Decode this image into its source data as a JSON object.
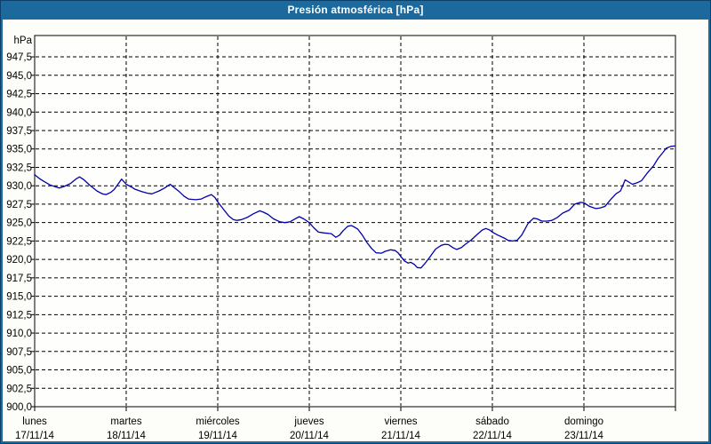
{
  "window": {
    "title": "Presión atmosférica [hPa]"
  },
  "colors": {
    "frame": "#1c6a9d",
    "title_text": "#ffffff",
    "panel_bg": "#fdfefa",
    "plot_bg": "#fefefc",
    "grid": "#000000",
    "axis": "#000000",
    "series_line": "#0000a8",
    "label_text": "#000000"
  },
  "chart_data": {
    "type": "line",
    "title": "Presión atmosférica [hPa]",
    "ylabel": "hPa",
    "xlabel": "",
    "grid": "dashed",
    "legend": "none",
    "ylim": [
      900,
      950.4
    ],
    "y_axis": {
      "min": 900,
      "max": 950.4,
      "tick_step": 2.5,
      "unit_label": "hPa",
      "tick_values": [
        947.5,
        945.0,
        942.5,
        940.0,
        937.5,
        935.0,
        932.5,
        930.0,
        927.5,
        925.0,
        922.5,
        920.0,
        917.5,
        915.0,
        912.5,
        910.0,
        907.5,
        905.0,
        902.5,
        900.0
      ],
      "tick_labels": [
        "947,5",
        "945,0",
        "942,5",
        "940,0",
        "937,5",
        "935,0",
        "932,5",
        "930,0",
        "927,5",
        "925,0",
        "922,5",
        "920,0",
        "917,5",
        "915,0",
        "912,5",
        "910,0",
        "907,5",
        "905,0",
        "902,5",
        "900,0"
      ]
    },
    "x_axis": {
      "span_days": 7,
      "days": [
        {
          "name": "lunes",
          "date": "17/11/14"
        },
        {
          "name": "martes",
          "date": "18/11/14"
        },
        {
          "name": "miércoles",
          "date": "19/11/14"
        },
        {
          "name": "jueves",
          "date": "20/11/14"
        },
        {
          "name": "viernes",
          "date": "21/11/14"
        },
        {
          "name": "sábado",
          "date": "22/11/14"
        },
        {
          "name": "domingo",
          "date": "23/11/14"
        }
      ]
    },
    "series": [
      {
        "name": "Presión atmosférica",
        "unit": "hPa",
        "points": [
          [
            0.0,
            931.5
          ],
          [
            0.05,
            931.0
          ],
          [
            0.1,
            930.6
          ],
          [
            0.17,
            930.1
          ],
          [
            0.24,
            929.8
          ],
          [
            0.27,
            929.7
          ],
          [
            0.32,
            929.9
          ],
          [
            0.39,
            930.3
          ],
          [
            0.45,
            930.9
          ],
          [
            0.49,
            931.2
          ],
          [
            0.54,
            930.8
          ],
          [
            0.6,
            930.1
          ],
          [
            0.68,
            929.3
          ],
          [
            0.74,
            928.9
          ],
          [
            0.78,
            928.8
          ],
          [
            0.83,
            929.1
          ],
          [
            0.87,
            929.5
          ],
          [
            0.91,
            930.2
          ],
          [
            0.95,
            930.9
          ],
          [
            1.0,
            930.2
          ],
          [
            1.06,
            929.8
          ],
          [
            1.1,
            929.5
          ],
          [
            1.17,
            929.2
          ],
          [
            1.23,
            929.0
          ],
          [
            1.28,
            928.9
          ],
          [
            1.36,
            929.3
          ],
          [
            1.42,
            929.7
          ],
          [
            1.48,
            930.2
          ],
          [
            1.53,
            929.7
          ],
          [
            1.58,
            929.2
          ],
          [
            1.63,
            928.6
          ],
          [
            1.68,
            928.2
          ],
          [
            1.76,
            928.1
          ],
          [
            1.82,
            928.2
          ],
          [
            1.87,
            928.5
          ],
          [
            1.93,
            928.8
          ],
          [
            1.97,
            928.4
          ],
          [
            2.0,
            927.8
          ],
          [
            2.07,
            926.7
          ],
          [
            2.12,
            925.9
          ],
          [
            2.17,
            925.4
          ],
          [
            2.21,
            925.3
          ],
          [
            2.26,
            925.4
          ],
          [
            2.32,
            925.7
          ],
          [
            2.39,
            926.2
          ],
          [
            2.46,
            926.6
          ],
          [
            2.5,
            926.4
          ],
          [
            2.55,
            926.1
          ],
          [
            2.61,
            925.5
          ],
          [
            2.68,
            925.1
          ],
          [
            2.73,
            925.0
          ],
          [
            2.79,
            925.1
          ],
          [
            2.83,
            925.4
          ],
          [
            2.89,
            925.8
          ],
          [
            2.94,
            925.5
          ],
          [
            3.0,
            925.0
          ],
          [
            3.05,
            924.3
          ],
          [
            3.1,
            923.7
          ],
          [
            3.16,
            923.6
          ],
          [
            3.24,
            923.5
          ],
          [
            3.29,
            923.0
          ],
          [
            3.33,
            923.3
          ],
          [
            3.37,
            923.9
          ],
          [
            3.42,
            924.5
          ],
          [
            3.46,
            924.6
          ],
          [
            3.49,
            924.4
          ],
          [
            3.53,
            924.1
          ],
          [
            3.58,
            923.3
          ],
          [
            3.63,
            922.3
          ],
          [
            3.68,
            921.5
          ],
          [
            3.73,
            920.9
          ],
          [
            3.79,
            920.85
          ],
          [
            3.83,
            921.1
          ],
          [
            3.89,
            921.3
          ],
          [
            3.94,
            921.2
          ],
          [
            3.97,
            920.9
          ],
          [
            4.0,
            920.4
          ],
          [
            4.04,
            919.8
          ],
          [
            4.08,
            919.5
          ],
          [
            4.11,
            919.6
          ],
          [
            4.15,
            919.3
          ],
          [
            4.18,
            918.9
          ],
          [
            4.22,
            918.85
          ],
          [
            4.26,
            919.4
          ],
          [
            4.31,
            920.2
          ],
          [
            4.38,
            921.4
          ],
          [
            4.44,
            921.9
          ],
          [
            4.48,
            922.05
          ],
          [
            4.52,
            922.0
          ],
          [
            4.57,
            921.6
          ],
          [
            4.61,
            921.35
          ],
          [
            4.66,
            921.6
          ],
          [
            4.7,
            922.0
          ],
          [
            4.77,
            922.65
          ],
          [
            4.84,
            923.45
          ],
          [
            4.89,
            924.0
          ],
          [
            4.93,
            924.2
          ],
          [
            4.97,
            924.0
          ],
          [
            5.0,
            923.7
          ],
          [
            5.06,
            923.3
          ],
          [
            5.13,
            922.9
          ],
          [
            5.17,
            922.6
          ],
          [
            5.22,
            922.5
          ],
          [
            5.27,
            922.6
          ],
          [
            5.32,
            923.3
          ],
          [
            5.36,
            924.2
          ],
          [
            5.39,
            924.9
          ],
          [
            5.45,
            925.6
          ],
          [
            5.49,
            925.5
          ],
          [
            5.54,
            925.2
          ],
          [
            5.6,
            925.2
          ],
          [
            5.65,
            925.3
          ],
          [
            5.71,
            925.7
          ],
          [
            5.77,
            926.3
          ],
          [
            5.84,
            926.7
          ],
          [
            5.9,
            927.5
          ],
          [
            5.96,
            927.75
          ],
          [
            6.0,
            927.7
          ],
          [
            6.06,
            927.2
          ],
          [
            6.13,
            926.9
          ],
          [
            6.18,
            927.0
          ],
          [
            6.23,
            927.2
          ],
          [
            6.29,
            928.1
          ],
          [
            6.35,
            928.9
          ],
          [
            6.4,
            929.3
          ],
          [
            6.45,
            930.8
          ],
          [
            6.49,
            930.5
          ],
          [
            6.53,
            930.2
          ],
          [
            6.58,
            930.4
          ],
          [
            6.63,
            930.7
          ],
          [
            6.69,
            931.7
          ],
          [
            6.76,
            932.7
          ],
          [
            6.81,
            933.7
          ],
          [
            6.85,
            934.3
          ],
          [
            6.9,
            935.1
          ],
          [
            6.95,
            935.35
          ],
          [
            6.99,
            935.4
          ]
        ]
      }
    ]
  }
}
